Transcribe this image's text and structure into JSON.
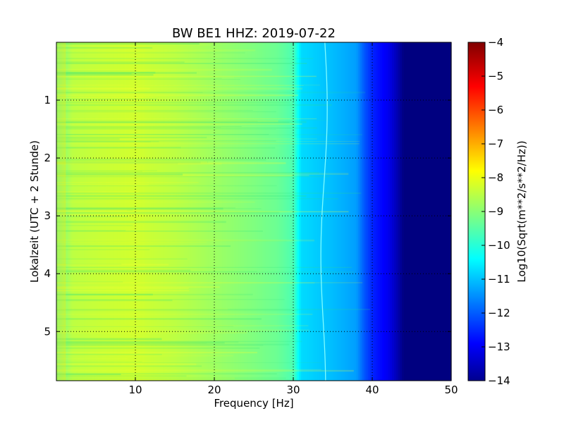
{
  "chart_data": {
    "type": "heatmap",
    "title": "BW BE1 HHZ: 2019-07-22",
    "xlabel": "Frequency [Hz]",
    "ylabel": "Lokalzeit (UTC + 2 Stunde)",
    "xlim": [
      0,
      50
    ],
    "ylim": [
      0,
      5.85
    ],
    "y_inverted": true,
    "x_ticks": [
      10,
      20,
      30,
      40,
      50
    ],
    "y_ticks": [
      1,
      2,
      3,
      4,
      5
    ],
    "grid": true,
    "colormap": "jet",
    "colorbar": {
      "label": "Log10(Sqrt(m**2/s**2/Hz))",
      "min": -14,
      "max": -4,
      "ticks": [
        -4,
        -5,
        -6,
        -7,
        -8,
        -9,
        -10,
        -11,
        -12,
        -13,
        -14
      ]
    },
    "frequency_profile": {
      "frequencies": [
        0,
        2,
        5,
        10,
        15,
        20,
        25,
        28,
        30,
        31,
        35,
        38,
        39,
        40,
        42,
        43,
        44,
        50
      ],
      "values": [
        -9.2,
        -8.4,
        -8.3,
        -8.2,
        -8.4,
        -8.7,
        -9.0,
        -9.2,
        -9.5,
        -10.6,
        -10.9,
        -11.2,
        -11.9,
        -12.4,
        -12.9,
        -13.4,
        -14.0,
        -14.0
      ]
    },
    "annotations": [
      {
        "type": "narrow-line",
        "frequency": 34,
        "value": -10.3
      }
    ]
  }
}
